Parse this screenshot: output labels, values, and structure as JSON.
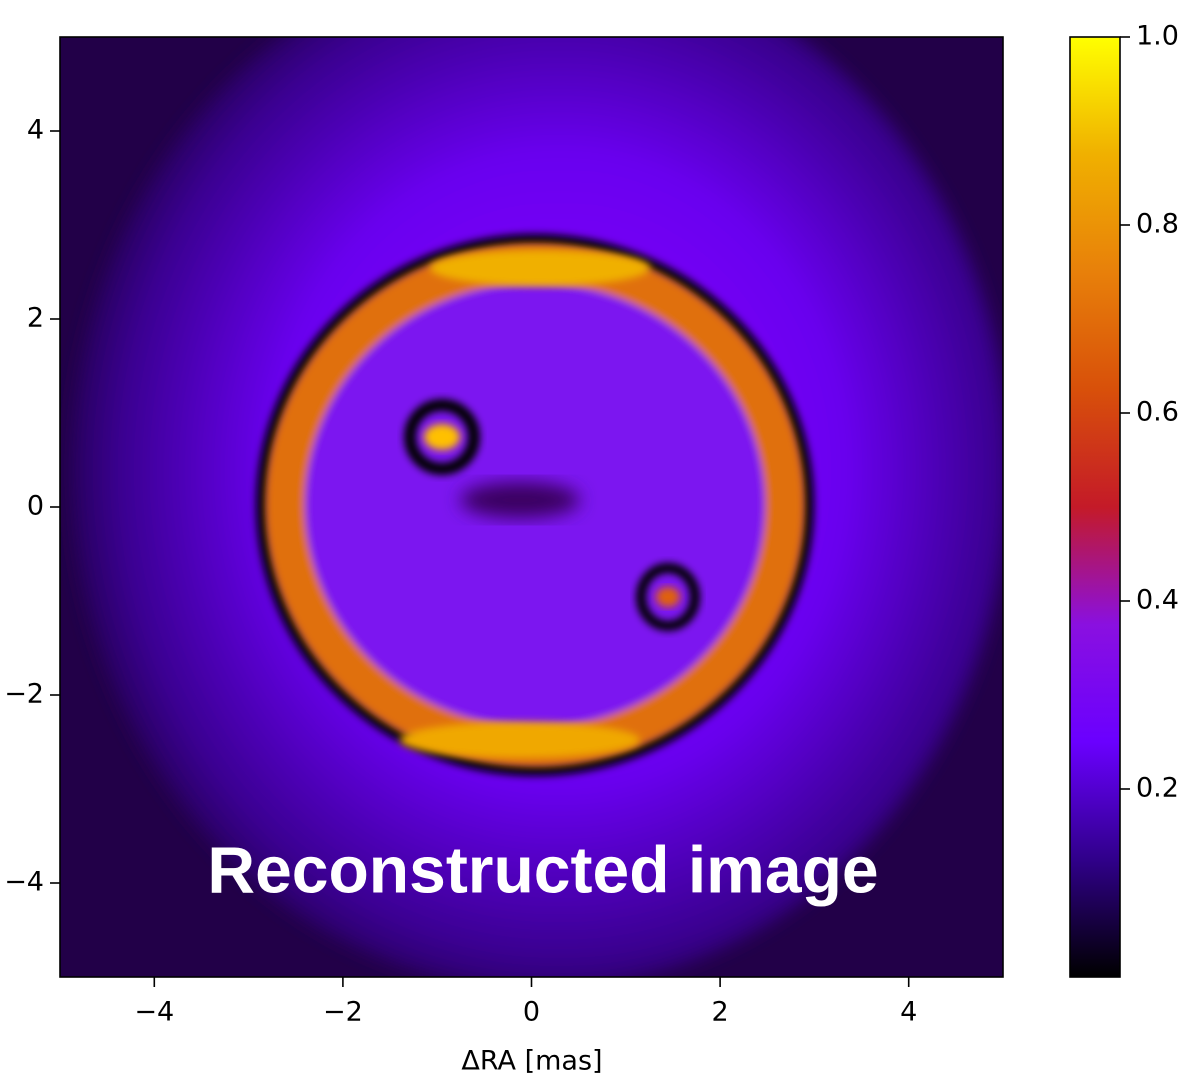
{
  "chart_data": {
    "type": "image",
    "annotation": "Reconstructed image",
    "xlabel": "ΔRA [mas]",
    "xlim": [
      -5,
      5
    ],
    "xticks": [
      {
        "value": -4,
        "label": "−4"
      },
      {
        "value": -2,
        "label": "−2"
      },
      0,
      2,
      4
    ],
    "ylim": [
      -5,
      5
    ],
    "yticks": [
      {
        "value": -4,
        "label": "−4"
      },
      {
        "value": -2,
        "label": "−2"
      },
      0,
      2,
      4
    ],
    "clim": [
      0,
      1
    ],
    "cticks": [
      0.2,
      0.4,
      0.6,
      0.8,
      {
        "value": 1,
        "label": "1.0"
      }
    ],
    "colors": [
      "#000000",
      "#30008a",
      "#6a00ff",
      "#8a10e0",
      "#c41a28",
      "#d8500a",
      "#e8800a",
      "#f0b000",
      "#ffff00"
    ]
  }
}
